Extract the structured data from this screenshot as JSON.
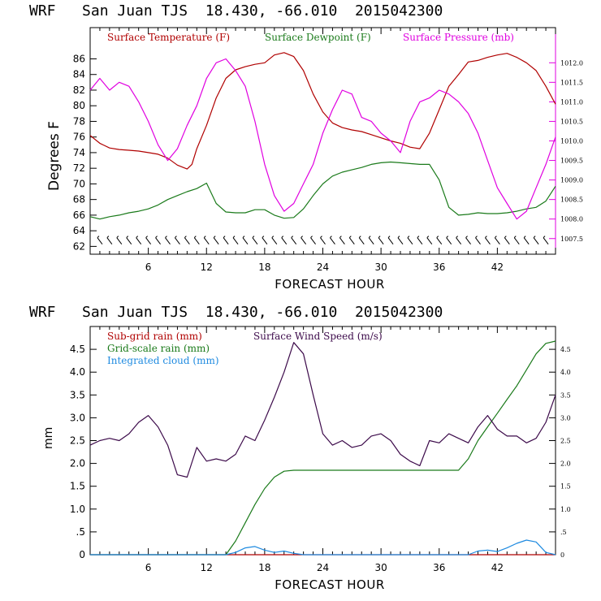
{
  "chart_data": [
    {
      "type": "line",
      "title": "WRF   San Juan TJS  18.430, -66.010  2015042300",
      "xlabel": "FORECAST HOUR",
      "ylabel": "Degrees F",
      "xlim": [
        0,
        48
      ],
      "x_ticks": [
        6,
        12,
        18,
        24,
        30,
        36,
        42
      ],
      "ylim": [
        61,
        90
      ],
      "y_ticks": [
        62,
        64,
        66,
        68,
        70,
        72,
        74,
        76,
        78,
        80,
        82,
        84,
        86
      ],
      "y2lim": [
        1007.1,
        1012.9
      ],
      "y2_ticks": [
        "1007.5",
        "1008.0",
        "1008.5",
        "1009.0",
        "1009.5",
        "1010.0",
        "1010.5",
        "1011.0",
        "1011.5",
        "1012.0"
      ],
      "grid": false,
      "legend_position": "top-left",
      "series": [
        {
          "name": "Surface Temperature (F)",
          "axis": "left",
          "color": "#b00000",
          "points": [
            [
              0,
              76.2
            ],
            [
              1,
              75.2
            ],
            [
              2,
              74.6
            ],
            [
              3,
              74.4
            ],
            [
              4,
              74.3
            ],
            [
              5,
              74.2
            ],
            [
              6,
              74.0
            ],
            [
              7,
              73.8
            ],
            [
              8,
              73.3
            ],
            [
              9,
              72.4
            ],
            [
              10,
              71.9
            ],
            [
              10.5,
              72.5
            ],
            [
              11,
              74.5
            ],
            [
              12,
              77.5
            ],
            [
              13,
              81.0
            ],
            [
              14,
              83.5
            ],
            [
              15,
              84.6
            ],
            [
              16,
              85.0
            ],
            [
              17,
              85.3
            ],
            [
              18,
              85.5
            ],
            [
              19,
              86.5
            ],
            [
              20,
              86.8
            ],
            [
              21,
              86.3
            ],
            [
              22,
              84.5
            ],
            [
              23,
              81.5
            ],
            [
              24,
              79.2
            ],
            [
              25,
              77.8
            ],
            [
              26,
              77.2
            ],
            [
              27,
              76.9
            ],
            [
              28,
              76.7
            ],
            [
              29,
              76.3
            ],
            [
              30,
              75.9
            ],
            [
              31,
              75.5
            ],
            [
              32,
              75.2
            ],
            [
              33,
              74.7
            ],
            [
              34,
              74.5
            ],
            [
              35,
              76.5
            ],
            [
              36,
              79.5
            ],
            [
              37,
              82.5
            ],
            [
              38,
              84.0
            ],
            [
              39,
              85.6
            ],
            [
              40,
              85.8
            ],
            [
              41,
              86.2
            ],
            [
              42,
              86.5
            ],
            [
              43,
              86.7
            ],
            [
              44,
              86.2
            ],
            [
              45,
              85.5
            ],
            [
              46,
              84.5
            ],
            [
              47,
              82.5
            ],
            [
              48,
              80.2
            ]
          ]
        },
        {
          "name": "Surface Dewpoint (F)",
          "axis": "left",
          "color": "#1a7a1a",
          "points": [
            [
              0,
              65.8
            ],
            [
              1,
              65.5
            ],
            [
              2,
              65.8
            ],
            [
              3,
              66.0
            ],
            [
              4,
              66.3
            ],
            [
              5,
              66.5
            ],
            [
              6,
              66.8
            ],
            [
              7,
              67.3
            ],
            [
              8,
              68.0
            ],
            [
              9,
              68.5
            ],
            [
              10,
              69.0
            ],
            [
              11,
              69.4
            ],
            [
              12,
              70.1
            ],
            [
              13,
              67.5
            ],
            [
              14,
              66.4
            ],
            [
              15,
              66.3
            ],
            [
              16,
              66.3
            ],
            [
              17,
              66.7
            ],
            [
              18,
              66.7
            ],
            [
              19,
              66.0
            ],
            [
              20,
              65.6
            ],
            [
              21,
              65.7
            ],
            [
              22,
              66.8
            ],
            [
              23,
              68.5
            ],
            [
              24,
              70.0
            ],
            [
              25,
              71.0
            ],
            [
              26,
              71.5
            ],
            [
              27,
              71.8
            ],
            [
              28,
              72.1
            ],
            [
              29,
              72.5
            ],
            [
              30,
              72.7
            ],
            [
              31,
              72.8
            ],
            [
              32,
              72.7
            ],
            [
              33,
              72.6
            ],
            [
              34,
              72.5
            ],
            [
              35,
              72.5
            ],
            [
              36,
              70.5
            ],
            [
              37,
              67.0
            ],
            [
              38,
              66.0
            ],
            [
              39,
              66.1
            ],
            [
              40,
              66.3
            ],
            [
              41,
              66.2
            ],
            [
              42,
              66.2
            ],
            [
              43,
              66.3
            ],
            [
              44,
              66.5
            ],
            [
              45,
              66.8
            ],
            [
              46,
              67.0
            ],
            [
              47,
              67.8
            ],
            [
              48,
              69.7
            ]
          ]
        },
        {
          "name": "Surface Pressure (mb)",
          "axis": "right",
          "color": "#e000e0",
          "points": [
            [
              0,
              1011.3
            ],
            [
              1,
              1011.6
            ],
            [
              2,
              1011.3
            ],
            [
              3,
              1011.5
            ],
            [
              4,
              1011.4
            ],
            [
              5,
              1011.0
            ],
            [
              6,
              1010.5
            ],
            [
              7,
              1009.9
            ],
            [
              8,
              1009.5
            ],
            [
              9,
              1009.8
            ],
            [
              10,
              1010.4
            ],
            [
              11,
              1010.9
            ],
            [
              12,
              1011.6
            ],
            [
              13,
              1012.0
            ],
            [
              14,
              1012.1
            ],
            [
              15,
              1011.8
            ],
            [
              16,
              1011.4
            ],
            [
              17,
              1010.5
            ],
            [
              18,
              1009.4
            ],
            [
              19,
              1008.6
            ],
            [
              20,
              1008.2
            ],
            [
              21,
              1008.4
            ],
            [
              22,
              1008.9
            ],
            [
              23,
              1009.4
            ],
            [
              24,
              1010.2
            ],
            [
              25,
              1010.8
            ],
            [
              26,
              1011.3
            ],
            [
              27,
              1011.2
            ],
            [
              28,
              1010.6
            ],
            [
              29,
              1010.5
            ],
            [
              30,
              1010.2
            ],
            [
              31,
              1010.0
            ],
            [
              32,
              1009.7
            ],
            [
              33,
              1010.5
            ],
            [
              34,
              1011.0
            ],
            [
              35,
              1011.1
            ],
            [
              36,
              1011.3
            ],
            [
              37,
              1011.2
            ],
            [
              38,
              1011.0
            ],
            [
              39,
              1010.7
            ],
            [
              40,
              1010.2
            ],
            [
              41,
              1009.5
            ],
            [
              42,
              1008.8
            ],
            [
              43,
              1008.4
            ],
            [
              44,
              1008.0
            ],
            [
              45,
              1008.2
            ],
            [
              46,
              1008.8
            ],
            [
              47,
              1009.4
            ],
            [
              48,
              1010.1
            ]
          ]
        }
      ],
      "wind_barbs": "row of wind barbs near the bottom of the plot"
    },
    {
      "type": "line",
      "title": "WRF   San Juan TJS  18.430, -66.010  2015042300",
      "xlabel": "FORECAST HOUR",
      "ylabel": "mm",
      "xlim": [
        0,
        48
      ],
      "x_ticks": [
        6,
        12,
        18,
        24,
        30,
        36,
        42
      ],
      "ylim": [
        0,
        5.0
      ],
      "y_ticks": [
        "0",
        ".5",
        "1.0",
        "1.5",
        "2.0",
        "2.5",
        "3.0",
        "3.5",
        "4.0",
        "4.5"
      ],
      "y2_ticks": [
        "0",
        ".5",
        "1.0",
        "1.5",
        "2.0",
        "2.5",
        "3.0",
        "3.5",
        "4.0",
        "4.5"
      ],
      "grid": false,
      "legend_position": "top-left",
      "series": [
        {
          "name": "Sub-grid rain (mm)",
          "color": "#b00000",
          "points": [
            [
              0,
              0
            ],
            [
              48,
              0
            ]
          ]
        },
        {
          "name": "Grid-scale rain (mm)",
          "color": "#1a7a1a",
          "points": [
            [
              0,
              0
            ],
            [
              14,
              0
            ],
            [
              15,
              0.3
            ],
            [
              16,
              0.7
            ],
            [
              17,
              1.1
            ],
            [
              18,
              1.45
            ],
            [
              19,
              1.7
            ],
            [
              20,
              1.83
            ],
            [
              21,
              1.85
            ],
            [
              38,
              1.85
            ],
            [
              39,
              2.1
            ],
            [
              40,
              2.5
            ],
            [
              41,
              2.8
            ],
            [
              42,
              3.1
            ],
            [
              43,
              3.4
            ],
            [
              44,
              3.7
            ],
            [
              45,
              4.05
            ],
            [
              46,
              4.4
            ],
            [
              47,
              4.63
            ],
            [
              48,
              4.68
            ]
          ]
        },
        {
          "name": "Integrated cloud (mm)",
          "color": "#1e8ae0",
          "points": [
            [
              0,
              0
            ],
            [
              14,
              0
            ],
            [
              15,
              0.05
            ],
            [
              16,
              0.15
            ],
            [
              17,
              0.18
            ],
            [
              18,
              0.1
            ],
            [
              19,
              0.05
            ],
            [
              20,
              0.08
            ],
            [
              21,
              0.03
            ],
            [
              22,
              0
            ],
            [
              39,
              0
            ],
            [
              40,
              0.08
            ],
            [
              41,
              0.1
            ],
            [
              42,
              0.07
            ],
            [
              43,
              0.15
            ],
            [
              44,
              0.25
            ],
            [
              45,
              0.32
            ],
            [
              46,
              0.28
            ],
            [
              47,
              0.05
            ],
            [
              48,
              0
            ]
          ]
        },
        {
          "name": "Surface Wind Speed (m/s)",
          "color": "#3c0a4a",
          "points": [
            [
              0,
              2.4
            ],
            [
              1,
              2.5
            ],
            [
              2,
              2.55
            ],
            [
              3,
              2.5
            ],
            [
              4,
              2.65
            ],
            [
              5,
              2.9
            ],
            [
              6,
              3.05
            ],
            [
              7,
              2.8
            ],
            [
              8,
              2.4
            ],
            [
              9,
              1.75
            ],
            [
              10,
              1.7
            ],
            [
              11,
              2.35
            ],
            [
              12,
              2.05
            ],
            [
              13,
              2.1
            ],
            [
              14,
              2.05
            ],
            [
              15,
              2.2
            ],
            [
              16,
              2.6
            ],
            [
              17,
              2.5
            ],
            [
              18,
              2.95
            ],
            [
              19,
              3.45
            ],
            [
              20,
              4.0
            ],
            [
              21,
              4.65
            ],
            [
              22,
              4.4
            ],
            [
              23,
              3.5
            ],
            [
              24,
              2.65
            ],
            [
              25,
              2.4
            ],
            [
              26,
              2.5
            ],
            [
              27,
              2.35
            ],
            [
              28,
              2.4
            ],
            [
              29,
              2.6
            ],
            [
              30,
              2.65
            ],
            [
              31,
              2.5
            ],
            [
              32,
              2.2
            ],
            [
              33,
              2.05
            ],
            [
              34,
              1.95
            ],
            [
              35,
              2.5
            ],
            [
              36,
              2.45
            ],
            [
              37,
              2.65
            ],
            [
              38,
              2.55
            ],
            [
              39,
              2.45
            ],
            [
              40,
              2.8
            ],
            [
              41,
              3.05
            ],
            [
              42,
              2.75
            ],
            [
              43,
              2.6
            ],
            [
              44,
              2.6
            ],
            [
              45,
              2.45
            ],
            [
              46,
              2.55
            ],
            [
              47,
              2.9
            ],
            [
              48,
              3.5
            ]
          ]
        }
      ]
    }
  ]
}
